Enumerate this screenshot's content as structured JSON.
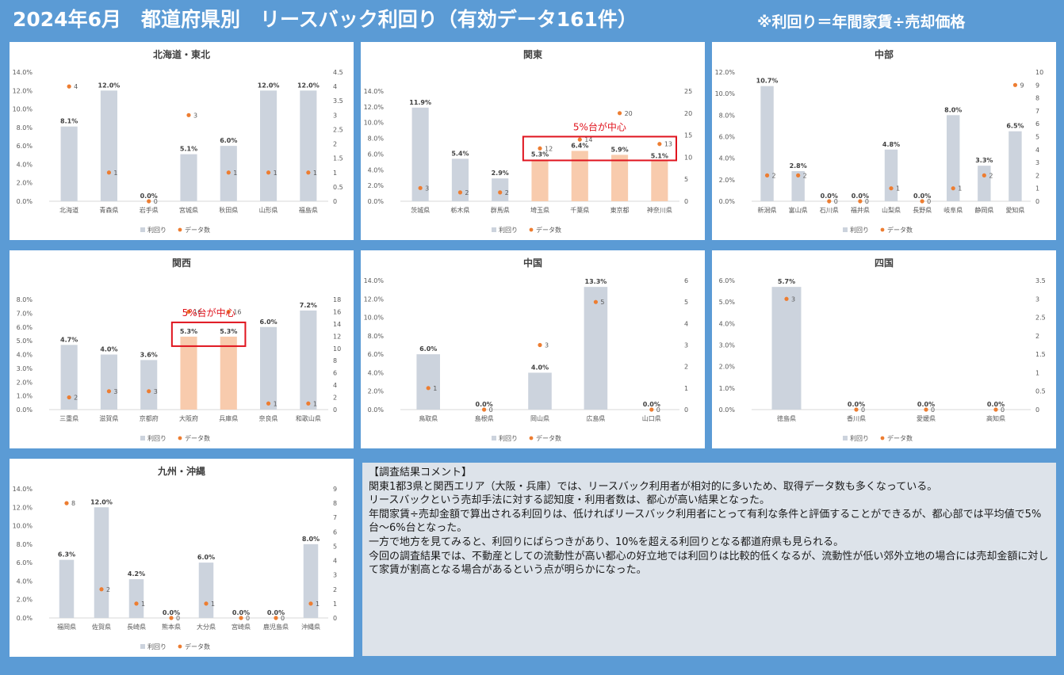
{
  "header": {
    "title": "2024年6月　都道府県別　リースバック利回り（有効データ161件）",
    "note": "※利回り＝年間家賃÷売却価格"
  },
  "legend": {
    "yield": "利回り",
    "count": "データ数"
  },
  "colors": {
    "bar": "#ccd3dd",
    "highlight": "#f8cbad",
    "dot": "#ed7d31",
    "frame": "#e0141e",
    "annotation": "#e0141e"
  },
  "chart_data": [
    {
      "type": "bar+scatter",
      "title": "北海道・東北",
      "categories": [
        "北海道",
        "青森県",
        "岩手県",
        "宮城県",
        "秋田県",
        "山形県",
        "福島県"
      ],
      "series": [
        {
          "name": "利回り",
          "values": [
            8.1,
            12.0,
            0.0,
            5.1,
            6.0,
            12.0,
            12.0
          ]
        },
        {
          "name": "データ数",
          "values": [
            4,
            1,
            0,
            3,
            1,
            1,
            1
          ]
        }
      ],
      "ylim": [
        0,
        14
      ],
      "yticks": [
        "0.0%",
        "2.0%",
        "4.0%",
        "6.0%",
        "8.0%",
        "10.0%",
        "12.0%",
        "14.0%"
      ],
      "y2lim": [
        0,
        4.5
      ],
      "y2ticks": [
        "0",
        "0.5",
        "1",
        "1.5",
        "2",
        "2.5",
        "3",
        "3.5",
        "4",
        "4.5"
      ],
      "highlight": []
    },
    {
      "type": "bar+scatter",
      "title": "関東",
      "categories": [
        "茨城県",
        "栃木県",
        "群馬県",
        "埼玉県",
        "千葉県",
        "東京都",
        "神奈川県"
      ],
      "series": [
        {
          "name": "利回り",
          "values": [
            11.9,
            5.4,
            2.9,
            5.3,
            6.4,
            5.9,
            5.1
          ]
        },
        {
          "name": "データ数",
          "values": [
            3,
            2,
            2,
            12,
            14,
            20,
            13
          ]
        }
      ],
      "ylim": [
        0,
        14
      ],
      "yticks": [
        "0.0%",
        "2.0%",
        "4.0%",
        "6.0%",
        "8.0%",
        "10.0%",
        "12.0%",
        "14.0%"
      ],
      "y2lim": [
        0,
        25
      ],
      "y2ticks": [
        "0",
        "5",
        "10",
        "15",
        "20",
        "25"
      ],
      "highlight": [
        3,
        4,
        5,
        6
      ],
      "annotation": "5%台が中心"
    },
    {
      "type": "bar+scatter",
      "title": "中部",
      "categories": [
        "新潟県",
        "富山県",
        "石川県",
        "福井県",
        "山梨県",
        "長野県",
        "岐阜県",
        "静岡県",
        "愛知県"
      ],
      "series": [
        {
          "name": "利回り",
          "values": [
            10.7,
            2.8,
            0.0,
            0.0,
            4.8,
            0.0,
            8.0,
            3.3,
            6.5
          ]
        },
        {
          "name": "データ数",
          "values": [
            2,
            2,
            0,
            0,
            1,
            0,
            1,
            2,
            9
          ]
        }
      ],
      "ylim": [
        0,
        12
      ],
      "yticks": [
        "0.0%",
        "2.0%",
        "4.0%",
        "6.0%",
        "8.0%",
        "10.0%",
        "12.0%"
      ],
      "y2lim": [
        0,
        10
      ],
      "y2ticks": [
        "0",
        "1",
        "2",
        "3",
        "4",
        "5",
        "6",
        "7",
        "8",
        "9",
        "10"
      ],
      "highlight": []
    },
    {
      "type": "bar+scatter",
      "title": "関西",
      "categories": [
        "三重県",
        "滋賀県",
        "京都府",
        "大阪府",
        "兵庫県",
        "奈良県",
        "和歌山県"
      ],
      "series": [
        {
          "name": "利回り",
          "values": [
            4.7,
            4.0,
            3.6,
            5.3,
            5.3,
            6.0,
            7.2
          ]
        },
        {
          "name": "データ数",
          "values": [
            2,
            3,
            3,
            16,
            16,
            1,
            1
          ]
        }
      ],
      "ylim": [
        0,
        8
      ],
      "yticks": [
        "0.0%",
        "1.0%",
        "2.0%",
        "3.0%",
        "4.0%",
        "5.0%",
        "6.0%",
        "7.0%",
        "8.0%"
      ],
      "y2lim": [
        0,
        18
      ],
      "y2ticks": [
        "0",
        "2",
        "4",
        "6",
        "8",
        "10",
        "12",
        "14",
        "16",
        "18"
      ],
      "highlight": [
        3,
        4
      ],
      "annotation": "5%台が中心"
    },
    {
      "type": "bar+scatter",
      "title": "中国",
      "categories": [
        "鳥取県",
        "島根県",
        "岡山県",
        "広島県",
        "山口県"
      ],
      "series": [
        {
          "name": "利回り",
          "values": [
            6.0,
            0.0,
            4.0,
            13.3,
            0.0
          ]
        },
        {
          "name": "データ数",
          "values": [
            1,
            0,
            3,
            5,
            0
          ]
        }
      ],
      "ylim": [
        0,
        14
      ],
      "yticks": [
        "0.0%",
        "2.0%",
        "4.0%",
        "6.0%",
        "8.0%",
        "10.0%",
        "12.0%",
        "14.0%"
      ],
      "y2lim": [
        0,
        6
      ],
      "y2ticks": [
        "0",
        "1",
        "2",
        "3",
        "4",
        "5",
        "6"
      ],
      "highlight": []
    },
    {
      "type": "bar+scatter",
      "title": "四国",
      "categories": [
        "徳島県",
        "香川県",
        "愛媛県",
        "高知県"
      ],
      "series": [
        {
          "name": "利回り",
          "values": [
            5.7,
            0.0,
            0.0,
            0.0
          ]
        },
        {
          "name": "データ数",
          "values": [
            3,
            0,
            0,
            0
          ]
        }
      ],
      "ylim": [
        0,
        6
      ],
      "yticks": [
        "0.0%",
        "1.0%",
        "2.0%",
        "3.0%",
        "4.0%",
        "5.0%",
        "6.0%"
      ],
      "y2lim": [
        0,
        3.5
      ],
      "y2ticks": [
        "0",
        "0.5",
        "1",
        "1.5",
        "2",
        "2.5",
        "3",
        "3.5"
      ],
      "highlight": []
    },
    {
      "type": "bar+scatter",
      "title": "九州・沖縄",
      "categories": [
        "福岡県",
        "佐賀県",
        "長崎県",
        "熊本県",
        "大分県",
        "宮崎県",
        "鹿児島県",
        "沖縄県"
      ],
      "series": [
        {
          "name": "利回り",
          "values": [
            6.3,
            12.0,
            4.2,
            0.0,
            6.0,
            0.0,
            0.0,
            8.0
          ]
        },
        {
          "name": "データ数",
          "values": [
            8,
            2,
            1,
            0,
            1,
            0,
            0,
            1
          ]
        }
      ],
      "ylim": [
        0,
        14
      ],
      "yticks": [
        "0.0%",
        "2.0%",
        "4.0%",
        "6.0%",
        "8.0%",
        "10.0%",
        "12.0%",
        "14.0%"
      ],
      "y2lim": [
        0,
        9
      ],
      "y2ticks": [
        "0",
        "1",
        "2",
        "3",
        "4",
        "5",
        "6",
        "7",
        "8",
        "9"
      ],
      "highlight": []
    }
  ],
  "comment": {
    "heading": "【調査結果コメント】",
    "lines": [
      "関東1都3県と関西エリア（大阪・兵庫）では、リースバック利用者が相対的に多いため、取得データ数も多くなっている。",
      "リースバックという売却手法に対する認知度・利用者数は、都心が高い結果となった。",
      "年間家賃÷売却金額で算出される利回りは、低ければリースバック利用者にとって有利な条件と評価することができるが、都心部では平均値で5%台～6%台となった。",
      "一方で地方を見てみると、利回りにばらつきがあり、10%を超える利回りとなる都道府県も見られる。",
      "今回の調査結果では、不動産としての流動性が高い都心の好立地では利回りは比較的低くなるが、流動性が低い郊外立地の場合には売却金額に対して家賃が割高となる場合があるという点が明らかになった。"
    ]
  }
}
